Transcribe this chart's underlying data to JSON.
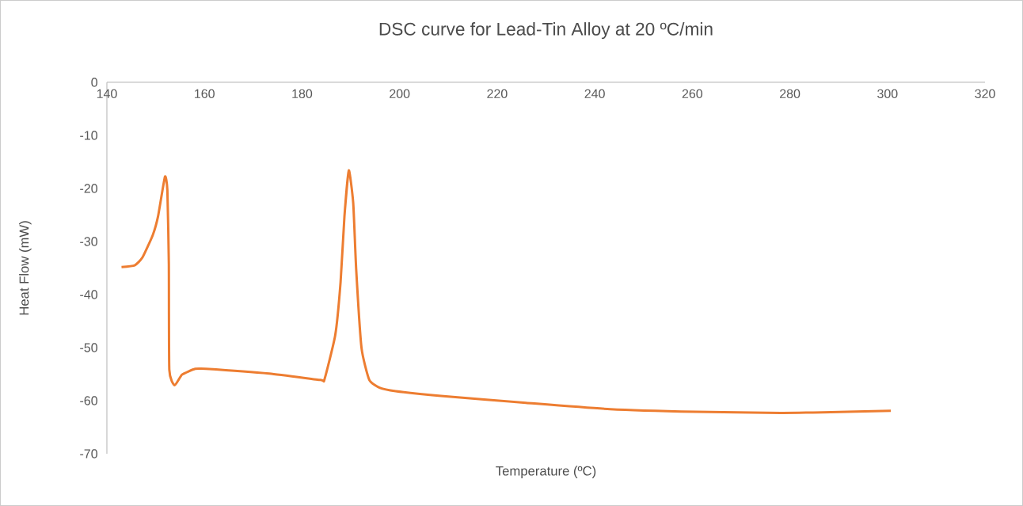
{
  "chart_data": {
    "type": "line",
    "title": "DSC curve for Lead-Tin Alloy at 20 ºC/min",
    "xlabel": "Temperature (ºC)",
    "ylabel": "Heat Flow (mW)",
    "xlim": [
      140,
      320
    ],
    "ylim": [
      -70,
      0
    ],
    "xticks": [
      140,
      160,
      180,
      200,
      220,
      240,
      260,
      280,
      300,
      320
    ],
    "yticks": [
      -70,
      -60,
      -50,
      -40,
      -30,
      -20,
      -10,
      0
    ],
    "marker": "none",
    "line_style": "solid",
    "series": [
      {
        "color": "#ed7d31",
        "x": [
          143.0,
          145.7,
          147.3,
          149.4,
          150.5,
          151.9,
          152.4,
          152.7,
          152.8,
          153.9,
          155.4,
          158.1,
          160.3,
          173.3,
          183.8,
          184.6,
          186.8,
          187.9,
          188.7,
          189.6,
          190.5,
          191.1,
          192.2,
          193.8,
          196.0,
          199.2,
          208.5,
          225.9,
          243.2,
          260.7,
          278.1,
          286.7,
          300.7
        ],
        "values": [
          -34.8,
          -34.5,
          -33.0,
          -28.8,
          -25.2,
          -17.8,
          -20.3,
          -34.2,
          -54.2,
          -57.1,
          -55.1,
          -54.0,
          -54.0,
          -54.9,
          -56.1,
          -56.0,
          -47.7,
          -37.7,
          -25.2,
          -16.6,
          -22.8,
          -35.2,
          -50.1,
          -56.1,
          -57.6,
          -58.2,
          -59.1,
          -60.4,
          -61.6,
          -62.1,
          -62.3,
          -62.2,
          -61.9
        ]
      }
    ]
  }
}
